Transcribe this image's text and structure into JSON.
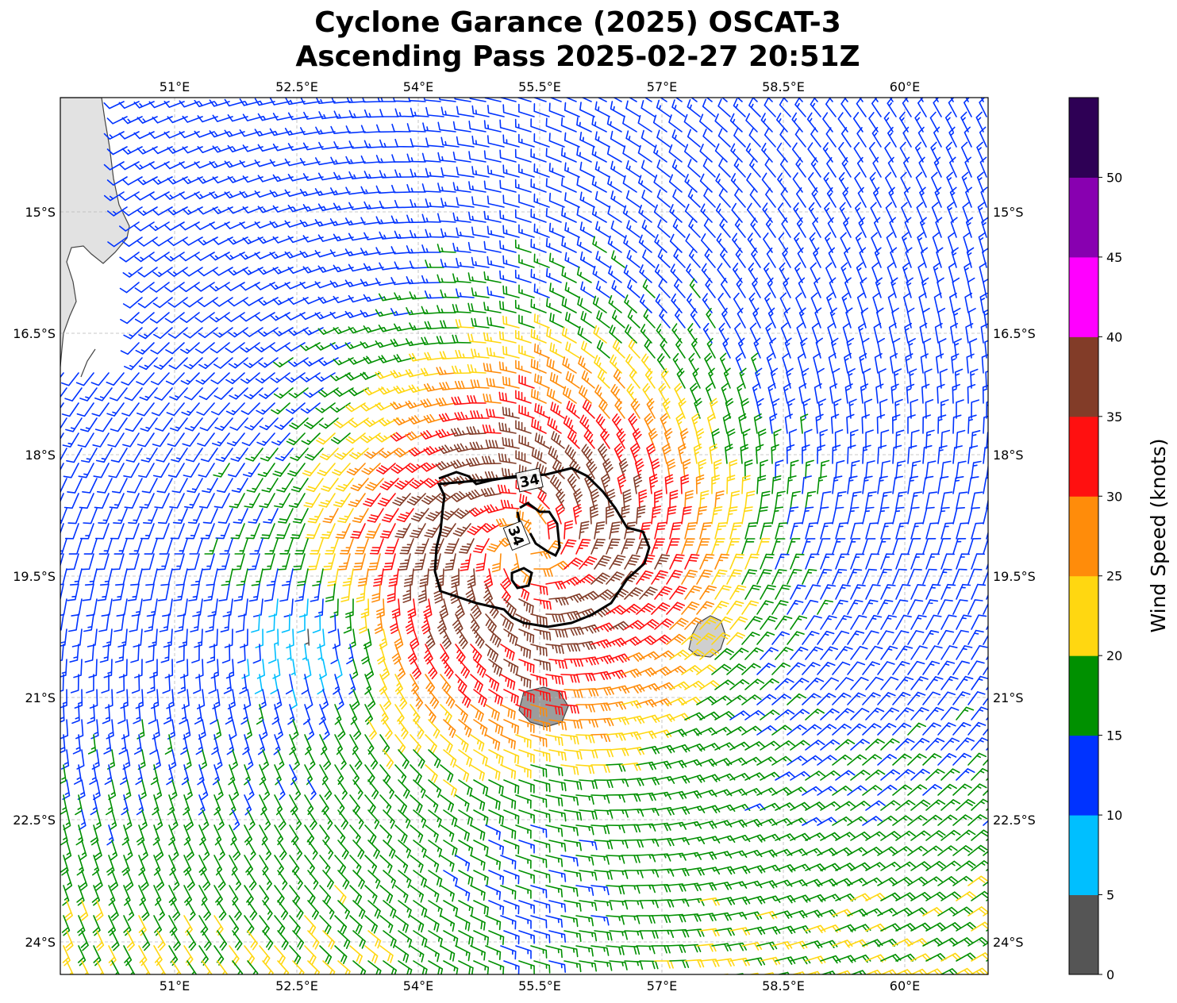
{
  "title": {
    "line1": "Cyclone Garance (2025) OSCAT-3",
    "line2": "Ascending Pass 2025-02-27 20:51Z"
  },
  "map": {
    "lon_ticks": [
      "51°E",
      "52.5°E",
      "54°E",
      "55.5°E",
      "57°E",
      "58.5°E",
      "60°E"
    ],
    "lat_ticks": [
      "15°S",
      "16.5°S",
      "18°S",
      "19.5°S",
      "21°S",
      "22.5°S",
      "24°S"
    ],
    "contour_label": "34",
    "contour_labels": [
      "34",
      "34"
    ],
    "contour_level_knots": 34
  },
  "colorbar": {
    "label": "Wind Speed (knots)",
    "ticks": [
      "0",
      "5",
      "10",
      "15",
      "20",
      "25",
      "30",
      "35",
      "40",
      "45",
      "50"
    ],
    "bins": [
      {
        "range": "0-5",
        "color": "#555555"
      },
      {
        "range": "5-10",
        "color": "#00bfff"
      },
      {
        "range": "10-15",
        "color": "#0033ff"
      },
      {
        "range": "15-20",
        "color": "#009000"
      },
      {
        "range": "20-25",
        "color": "#ffd711"
      },
      {
        "range": "25-30",
        "color": "#ff8c0a"
      },
      {
        "range": "30-35",
        "color": "#ff1010"
      },
      {
        "range": "35-40",
        "color": "#823c28"
      },
      {
        "range": "40-45",
        "color": "#ff00ff"
      },
      {
        "range": "45-50",
        "color": "#8800b0"
      },
      {
        "range": "50-55",
        "color": "#2e0055"
      }
    ]
  }
}
